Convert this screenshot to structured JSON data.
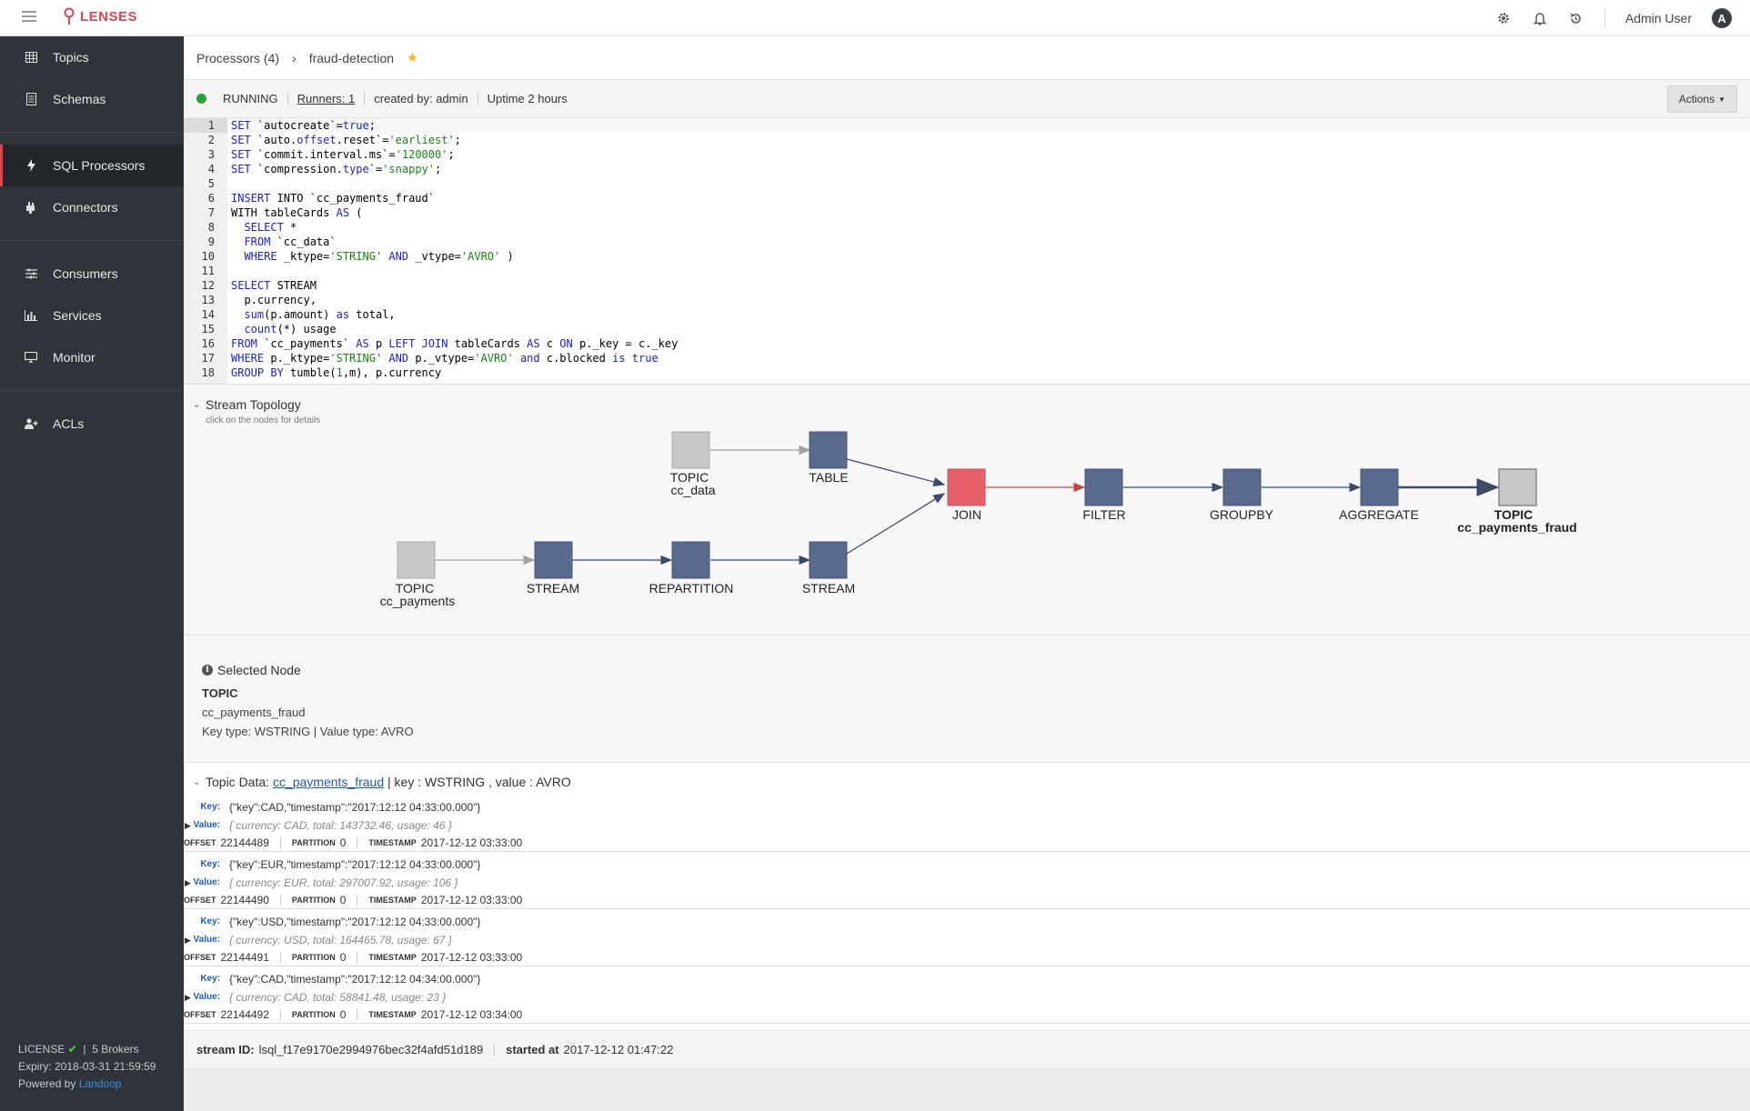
{
  "app": {
    "name": "LENSES",
    "user": "Admin User",
    "user_initial": "A"
  },
  "sidebar": {
    "items": [
      {
        "label": "Topics",
        "icon": "table-icon"
      },
      {
        "label": "Schemas",
        "icon": "document-icon"
      },
      {
        "label": "SQL Processors",
        "icon": "bolt-icon",
        "active": true
      },
      {
        "label": "Connectors",
        "icon": "plug-icon"
      },
      {
        "label": "Consumers",
        "icon": "sliders-icon"
      },
      {
        "label": "Services",
        "icon": "bar-chart-icon"
      },
      {
        "label": "Monitor",
        "icon": "monitor-icon"
      },
      {
        "label": "ACLs",
        "icon": "user-plus-icon"
      }
    ],
    "footer": {
      "license": "LICENSE",
      "brokers": "5 Brokers",
      "expiry": "Expiry: 2018-03-31 21:59:59",
      "powered": "Powered by",
      "powered_link": "Landoop"
    }
  },
  "breadcrumb": {
    "parent": "Processors (4)",
    "current": "fraud-detection"
  },
  "status": {
    "state": "RUNNING",
    "runners": "Runners: 1",
    "created": "created by: admin",
    "uptime": "Uptime 2 hours",
    "actions": "Actions"
  },
  "editor": {
    "line_numbers": [
      "1",
      "2",
      "3",
      "4",
      "5",
      "6",
      "7",
      "8",
      "9",
      "10",
      "11",
      "12",
      "13",
      "14",
      "15",
      "16",
      "17",
      "18"
    ]
  },
  "topology": {
    "title": "Stream Topology",
    "subtitle": "click on the nodes for details",
    "nodes": {
      "topic_cc_data": [
        "TOPIC",
        "cc_data"
      ],
      "table": "TABLE",
      "topic_cc_payments": [
        "TOPIC",
        "cc_payments"
      ],
      "stream1": "STREAM",
      "repartition": "REPARTITION",
      "stream2": "STREAM",
      "join": "JOIN",
      "filter": "FILTER",
      "groupby": "GROUPBY",
      "aggregate": "AGGREGATE",
      "topic_out": [
        "TOPIC",
        "cc_payments_fraud"
      ]
    },
    "colors": {
      "topic": "#c8c8c8",
      "process": "#5a6a8e",
      "join": "#e8606a",
      "edge": "#3f4a6b"
    }
  },
  "selected_node": {
    "title": "Selected Node",
    "type": "TOPIC",
    "name": "cc_payments_fraud",
    "detail": "Key type: WSTRING | Value type: AVRO"
  },
  "topic_data": {
    "label": "Topic Data:",
    "topic": "cc_payments_fraud",
    "suffix": "| key : WSTRING , value : AVRO",
    "key_label": "Key:",
    "value_label": "Value:",
    "offset_label": "OFFSET",
    "partition_label": "PARTITION",
    "timestamp_label": "TIMESTAMP",
    "records": [
      {
        "key": "{\"key\":CAD,\"timestamp\":\"2017:12:12 04:33:00.000\"}",
        "value": "{ currency: CAD, total: 143732.46, usage: 46 }",
        "offset": "22144489",
        "partition": "0",
        "timestamp": "2017-12-12 03:33:00"
      },
      {
        "key": "{\"key\":EUR,\"timestamp\":\"2017:12:12 04:33:00.000\"}",
        "value": "{ currency: EUR, total: 297007.92, usage: 106 }",
        "offset": "22144490",
        "partition": "0",
        "timestamp": "2017-12-12 03:33:00"
      },
      {
        "key": "{\"key\":USD,\"timestamp\":\"2017:12:12 04:33:00.000\"}",
        "value": "{ currency: USD, total: 164465.78, usage: 67 }",
        "offset": "22144491",
        "partition": "0",
        "timestamp": "2017-12-12 03:33:00"
      },
      {
        "key": "{\"key\":CAD,\"timestamp\":\"2017:12:12 04:34:00.000\"}",
        "value": "{ currency: CAD, total: 58841.48, usage: 23 }",
        "offset": "22144492",
        "partition": "0",
        "timestamp": "2017-12-12 03:34:00"
      }
    ]
  },
  "footer": {
    "stream_id_label": "stream ID:",
    "stream_id": "lsql_f17e9170e2994976bec32f4afd51d189",
    "started_label": "started at",
    "started": "2017-12-12 01:47:22"
  }
}
